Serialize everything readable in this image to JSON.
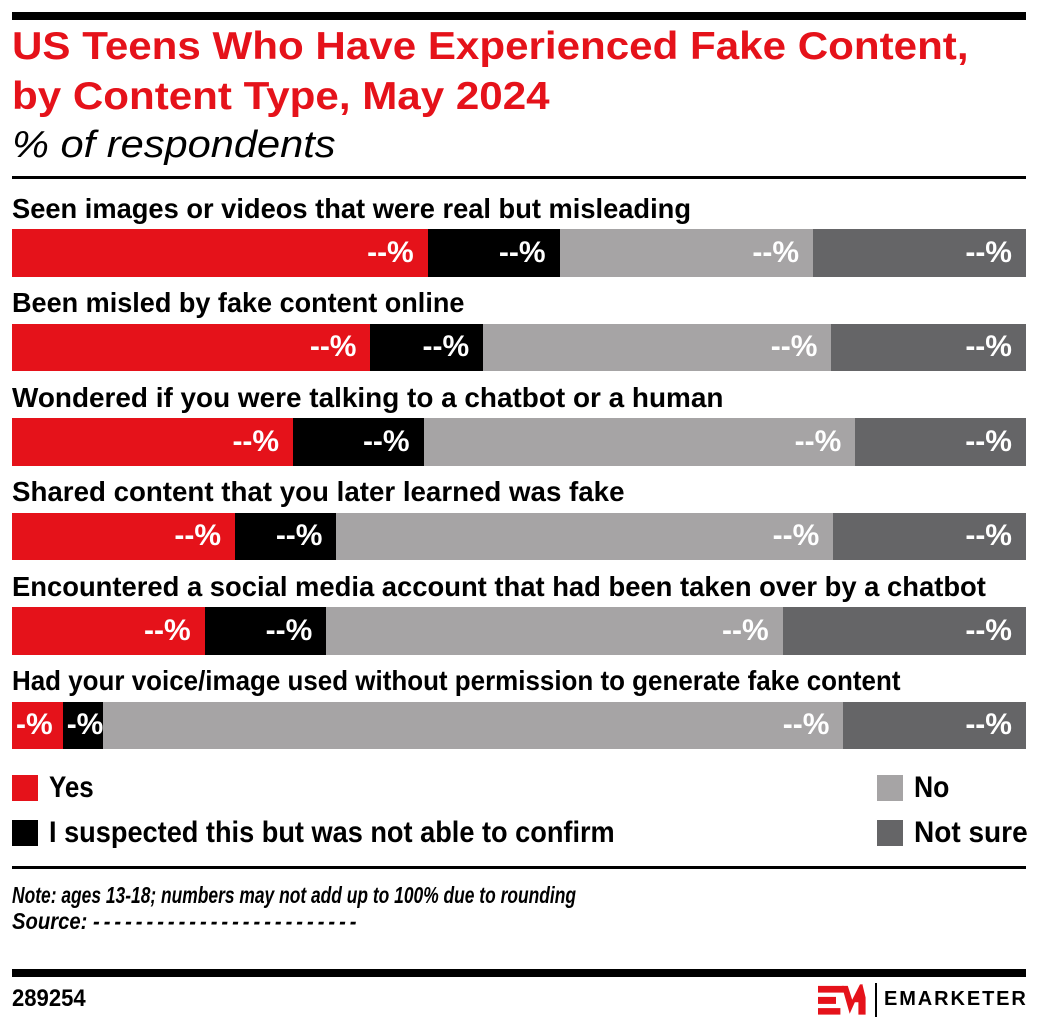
{
  "header": {
    "title_line1": "US Teens Who Have Experienced Fake Content,",
    "title_line2": "by Content Type, May 2024",
    "subtitle": "% of respondents",
    "title_color": "#E5121A"
  },
  "chart_data": {
    "type": "bar",
    "orientation": "horizontal_stacked",
    "unit": "% of respondents",
    "values_redacted_on_chart": true,
    "series_names": [
      "Yes",
      "I suspected this but was not able to confirm",
      "No",
      "Not sure"
    ],
    "colors": {
      "yes": "#E5121A",
      "suspected": "#000000",
      "no": "#A6A4A5",
      "not_sure": "#656567"
    },
    "xlim": [
      0,
      100
    ],
    "rows": [
      {
        "label": "Seen images or videos that were real but misleading",
        "values": [
          41,
          13,
          25,
          21
        ],
        "value_labels": [
          "--%",
          "--%",
          "--%",
          "--%"
        ]
      },
      {
        "label": "Been misled by fake content online",
        "values": [
          35,
          11,
          34,
          19
        ],
        "value_labels": [
          "--%",
          "--%",
          "--%",
          "--%"
        ]
      },
      {
        "label": "Wondered if you were talking to a chatbot or a human",
        "values": [
          28,
          13,
          43,
          17
        ],
        "value_labels": [
          "--%",
          "--%",
          "--%",
          "--%"
        ]
      },
      {
        "label": "Shared content that you later learned was fake",
        "values": [
          22,
          10,
          49,
          19
        ],
        "value_labels": [
          "--%",
          "--%",
          "--%",
          "--%"
        ]
      },
      {
        "label": "Encountered a social media account that had been taken over by a chatbot",
        "values": [
          19,
          12,
          45,
          24
        ],
        "value_labels": [
          "--%",
          "--%",
          "--%",
          "--%"
        ]
      },
      {
        "label": "Had your voice/image used without permission to generate fake content",
        "values": [
          5,
          4,
          73,
          18
        ],
        "value_labels": [
          "-%",
          "-%",
          "--%",
          "--%"
        ]
      }
    ]
  },
  "legend": {
    "items": [
      {
        "label": "Yes",
        "color": "#E5121A"
      },
      {
        "label": "I suspected this but was not able to confirm",
        "color": "#000000"
      },
      {
        "label": "No",
        "color": "#A6A4A5"
      },
      {
        "label": "Not sure",
        "color": "#656567"
      }
    ]
  },
  "footnote": {
    "note": "Note: ages 13-18; numbers may not add up to 100% due to rounding",
    "source_label": "Source: ",
    "source_dashes": "-------------------------"
  },
  "footer": {
    "chart_id": "289254",
    "wordmark": "EMARKETER",
    "brand_color": "#E5121A"
  }
}
